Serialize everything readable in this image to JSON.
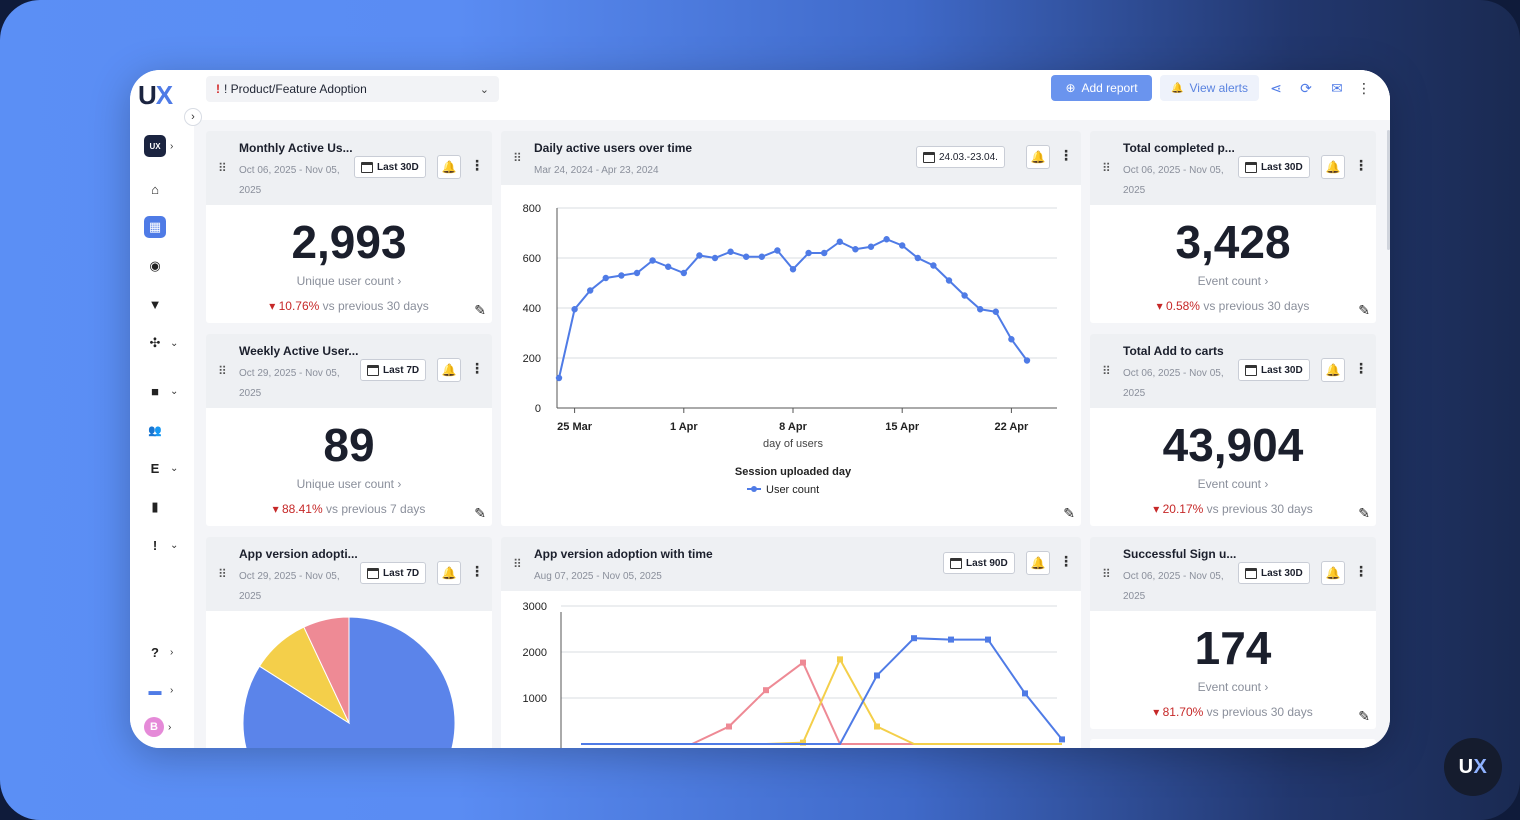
{
  "brand": {
    "logo_main": "U",
    "logo_x": "X"
  },
  "sidebar": {
    "collapse_icon": "chevron-right-icon",
    "items": [
      {
        "name": "workspace-switcher",
        "icon": "UX",
        "chevron": "›"
      },
      {
        "name": "home",
        "icon": "⌂"
      },
      {
        "name": "dashboards",
        "icon": "▦"
      },
      {
        "name": "sessions",
        "icon": "◉"
      },
      {
        "name": "funnels",
        "icon": "▼"
      },
      {
        "name": "analytics",
        "icon": "✣",
        "chevron": "⌄"
      },
      {
        "name": "recordings",
        "icon": "■",
        "chevron": "⌄"
      },
      {
        "name": "users",
        "icon": "👥"
      },
      {
        "name": "events",
        "icon": "E",
        "chevron": "⌄"
      },
      {
        "name": "mobile",
        "icon": "▮"
      },
      {
        "name": "issues",
        "icon": "!",
        "chevron": "⌄"
      },
      {
        "name": "help",
        "icon": "?",
        "chevron": "›"
      },
      {
        "name": "inbox",
        "icon": "▬",
        "chevron": "›"
      },
      {
        "name": "profile",
        "icon": "B",
        "chevron": "›"
      }
    ]
  },
  "topbar": {
    "dashboard_alert": "!",
    "dashboard_name": "! Product/Feature Adoption",
    "add_report": "Add report",
    "view_alerts": "View alerts"
  },
  "cards": {
    "mau": {
      "title": "Monthly Active Us...",
      "date": "Oct 06, 2025 - Nov 05, 2025",
      "range": "Last 30D",
      "value": "2,993",
      "label": "Unique user count ›",
      "delta": "10.76%",
      "delta_text": "vs previous 30 days"
    },
    "wau": {
      "title": "Weekly Active User...",
      "date": "Oct 29, 2025 - Nov 05, 2025",
      "range": "Last 7D",
      "value": "89",
      "label": "Unique user count ›",
      "delta": "88.41%",
      "delta_text": "vs previous 7 days"
    },
    "app_version": {
      "title": "App version adopti...",
      "date": "Oct 29, 2025 - Nov 05, 2025",
      "range": "Last 7D"
    },
    "dau": {
      "title": "Daily active users over time",
      "date": "Mar 24, 2024 - Apr 23, 2024",
      "range": "24.03.-23.04."
    },
    "app_version_time": {
      "title": "App version adoption with time",
      "date": "Aug 07, 2025 - Nov 05, 2025",
      "range": "Last 90D"
    },
    "completed": {
      "title": "Total completed p...",
      "date": "Oct 06, 2025 - Nov 05, 2025",
      "range": "Last 30D",
      "value": "3,428",
      "label": "Event count ›",
      "delta": "0.58%",
      "delta_text": "vs previous 30 days"
    },
    "add_to_carts": {
      "title": "Total Add to carts",
      "date": "Oct 06, 2025 - Nov 05, 2025",
      "range": "Last 30D",
      "value": "43,904",
      "label": "Event count ›",
      "delta": "20.17%",
      "delta_text": "vs previous 30 days"
    },
    "signups": {
      "title": "Successful Sign u...",
      "date": "Oct 06, 2025 - Nov 05, 2025",
      "range": "Last 30D",
      "value": "174",
      "label": "Event count ›",
      "delta": "81.70%",
      "delta_text": "vs previous 30 days"
    }
  },
  "chart_data": [
    {
      "type": "line",
      "title": "Daily active users over time",
      "xlabel": "day of users",
      "ylabel": "",
      "legend_title": "Session uploaded day",
      "x_ticks": [
        "25 Mar",
        "1 Apr",
        "8 Apr",
        "15 Apr",
        "22 Apr"
      ],
      "y_ticks": [
        0,
        200,
        400,
        600,
        800
      ],
      "ylim": [
        0,
        800
      ],
      "x_start_day": "24 Mar",
      "series": [
        {
          "name": "User count",
          "color": "#4f7be6",
          "values": [
            120,
            395,
            470,
            520,
            530,
            540,
            590,
            565,
            540,
            610,
            600,
            625,
            605,
            605,
            630,
            555,
            620,
            620,
            665,
            635,
            645,
            675,
            650,
            600,
            570,
            510,
            450,
            395,
            385,
            275,
            190
          ]
        }
      ]
    },
    {
      "type": "line",
      "title": "App version adoption with time",
      "y_ticks": [
        1000,
        2000,
        3000
      ],
      "ylim": [
        0,
        3000
      ],
      "series": [
        {
          "color": "#ee8a95",
          "values": [
            0,
            0,
            0,
            0,
            380,
            1170,
            1770,
            0,
            0,
            0,
            0,
            0,
            0,
            0
          ]
        },
        {
          "color": "#f4cf4a",
          "values": [
            0,
            0,
            0,
            0,
            0,
            0,
            30,
            1840,
            380,
            0,
            0,
            0,
            0,
            0
          ]
        },
        {
          "color": "#4f7be6",
          "values": [
            0,
            0,
            0,
            0,
            0,
            0,
            0,
            0,
            1490,
            2300,
            2270,
            2270,
            1100,
            100
          ]
        }
      ]
    },
    {
      "type": "pie",
      "title": "App version adopti...",
      "slices": [
        {
          "color": "#5b84ea",
          "value": 84
        },
        {
          "color": "#f4cf4a",
          "value": 9
        },
        {
          "color": "#ee8a95",
          "value": 7
        }
      ]
    }
  ]
}
